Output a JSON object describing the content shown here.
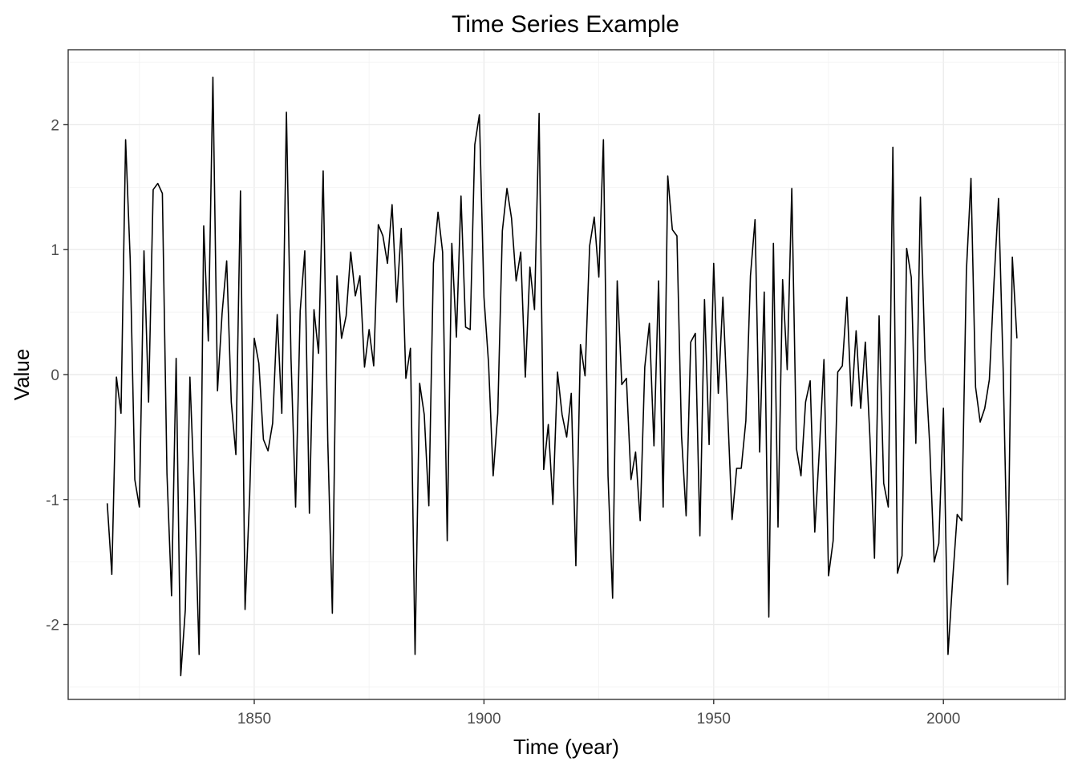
{
  "chart_data": {
    "type": "line",
    "title": "Time Series Example",
    "xlabel": "Time (year)",
    "ylabel": "Value",
    "xlim": [
      1809.5,
      2026.5
    ],
    "ylim": [
      -2.6,
      2.6
    ],
    "x_ticks": [
      1850,
      1900,
      1950,
      2000
    ],
    "x_tick_labels": [
      "1850",
      "1900",
      "1950",
      "2000"
    ],
    "y_ticks": [
      -2,
      -1,
      0,
      1,
      2
    ],
    "y_tick_labels": [
      "-2",
      "-1",
      "0",
      "1",
      "2"
    ],
    "grid": true,
    "legend": "none",
    "line_color": "#000000",
    "series": [
      {
        "x_start": 1818,
        "x_step": 1,
        "values": [
          -1.03,
          -1.6,
          -0.02,
          -0.31,
          1.88,
          0.92,
          -0.84,
          -1.06,
          0.99,
          -0.22,
          1.48,
          1.53,
          1.45,
          -0.79,
          -1.77,
          0.13,
          -2.41,
          -1.88,
          -0.02,
          -0.99,
          -2.24,
          1.19,
          0.27,
          2.38,
          -0.13,
          0.49,
          0.91,
          -0.22,
          -0.64,
          1.47,
          -1.88,
          -0.97,
          0.29,
          0.09,
          -0.52,
          -0.61,
          -0.39,
          0.48,
          -0.31,
          2.1,
          0.13,
          -1.06,
          0.51,
          0.99,
          -1.11,
          0.52,
          0.17,
          1.63,
          -0.53,
          -1.91,
          0.79,
          0.29,
          0.47,
          0.98,
          0.63,
          0.79,
          0.06,
          0.36,
          0.07,
          1.2,
          1.11,
          0.89,
          1.36,
          0.58,
          1.17,
          -0.03,
          0.21,
          -2.24,
          -0.07,
          -0.32,
          -1.05,
          0.89,
          1.3,
          0.98,
          -1.33,
          1.05,
          0.3,
          1.43,
          0.38,
          0.36,
          1.84,
          2.08,
          0.62,
          0.09,
          -0.81,
          -0.31,
          1.15,
          1.49,
          1.25,
          0.75,
          0.98,
          -0.02,
          0.86,
          0.52,
          2.09,
          -0.76,
          -0.4,
          -1.04,
          0.02,
          -0.32,
          -0.5,
          -0.15,
          -1.53,
          0.24,
          -0.01,
          1.03,
          1.26,
          0.78,
          1.88,
          -0.81,
          -1.79,
          0.75,
          -0.08,
          -0.03,
          -0.84,
          -0.62,
          -1.17,
          0.06,
          0.41,
          -0.57,
          0.75,
          -1.06,
          1.59,
          1.16,
          1.11,
          -0.49,
          -1.13,
          0.26,
          0.33,
          -1.29,
          0.6,
          -0.56,
          0.89,
          -0.15,
          0.62,
          -0.26,
          -1.16,
          -0.75,
          -0.75,
          -0.37,
          0.79,
          1.24,
          -0.62,
          0.66,
          -1.94,
          1.05,
          -1.22,
          0.76,
          0.04,
          1.49,
          -0.59,
          -0.81,
          -0.22,
          -0.05,
          -1.26,
          -0.6,
          0.12,
          -1.61,
          -1.33,
          0.02,
          0.07,
          0.62,
          -0.25,
          0.35,
          -0.27,
          0.26,
          -0.5,
          -1.47,
          0.47,
          -0.87,
          -1.06,
          1.82,
          -1.59,
          -1.45,
          1.01,
          0.78,
          -0.55,
          1.42,
          0.12,
          -0.55,
          -1.5,
          -1.35,
          -0.27,
          -2.24,
          -1.65,
          -1.12,
          -1.17,
          0.83,
          1.57,
          -0.1,
          -0.38,
          -0.27,
          -0.04,
          0.73,
          1.41,
          0.05,
          -1.68,
          0.94,
          0.29
        ]
      }
    ]
  }
}
